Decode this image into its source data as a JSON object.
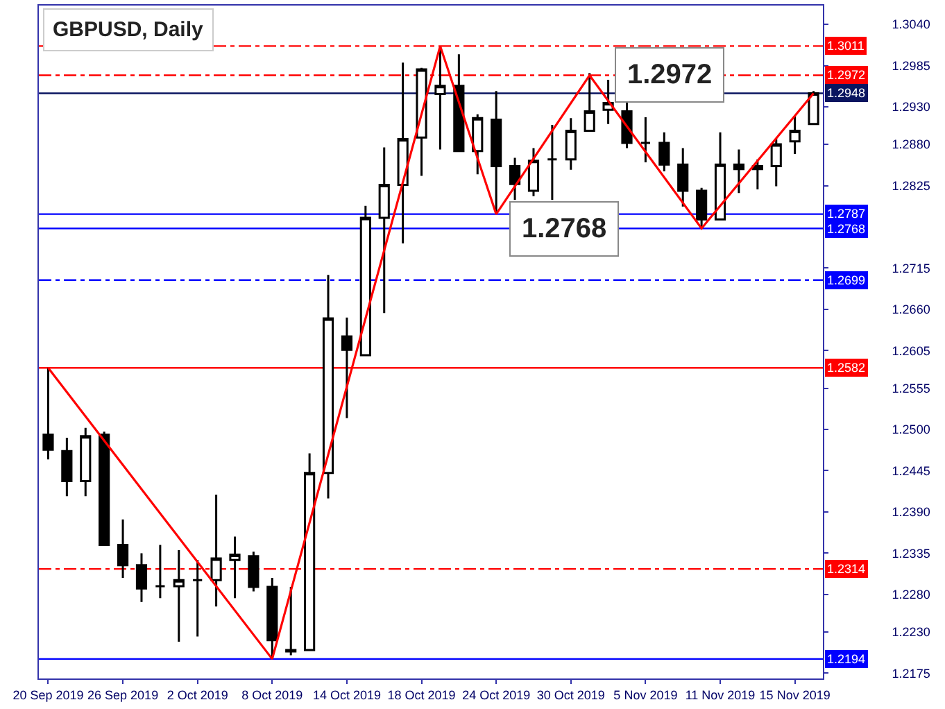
{
  "chart_data": {
    "type": "candlestick",
    "title": "GBPUSD, Daily",
    "categories": [
      "20 Sep 2019",
      null,
      null,
      null,
      "26 Sep 2019",
      null,
      null,
      null,
      "2 Oct 2019",
      null,
      null,
      null,
      "8 Oct 2019",
      null,
      null,
      null,
      "14 Oct 2019",
      null,
      null,
      null,
      "18 Oct 2019",
      null,
      null,
      null,
      "24 Oct 2019",
      null,
      null,
      null,
      "30 Oct 2019",
      null,
      null,
      null,
      "5 Nov 2019",
      null,
      null,
      null,
      "11 Nov 2019",
      null,
      null,
      null,
      "15 Nov 2019",
      null
    ],
    "ohlc": [
      [
        1.2493,
        1.2582,
        1.246,
        1.2473
      ],
      [
        1.2471,
        1.2489,
        1.2411,
        1.2431
      ],
      [
        1.2431,
        1.2502,
        1.2411,
        1.2491
      ],
      [
        1.2493,
        1.2497,
        1.2346,
        1.2346
      ],
      [
        1.2346,
        1.238,
        1.2302,
        1.2319
      ],
      [
        1.2319,
        1.2335,
        1.227,
        1.2288
      ],
      [
        1.2291,
        1.2346,
        1.2275,
        1.2291
      ],
      [
        1.2291,
        1.2339,
        1.2217,
        1.2299
      ],
      [
        1.2299,
        1.2326,
        1.2224,
        1.2299
      ],
      [
        1.2299,
        1.2413,
        1.2264,
        1.2328
      ],
      [
        1.2326,
        1.2357,
        1.2275,
        1.2333
      ],
      [
        1.2331,
        1.2337,
        1.2284,
        1.229
      ],
      [
        1.229,
        1.2302,
        1.2194,
        1.2219
      ],
      [
        1.2204,
        1.229,
        1.2199,
        1.2206
      ],
      [
        1.2206,
        1.2468,
        1.2206,
        1.2442
      ],
      [
        1.2442,
        1.2706,
        1.2408,
        1.2648
      ],
      [
        1.2624,
        1.2649,
        1.2515,
        1.2606
      ],
      [
        1.2599,
        1.2798,
        1.2599,
        1.2782
      ],
      [
        1.2782,
        1.2876,
        1.2655,
        1.2826
      ],
      [
        1.2826,
        1.2989,
        1.2748,
        1.2887
      ],
      [
        1.2889,
        1.2982,
        1.2838,
        1.298
      ],
      [
        1.2947,
        1.3011,
        1.2873,
        1.2958
      ],
      [
        1.2958,
        1.3,
        1.2871,
        1.2871
      ],
      [
        1.2871,
        1.292,
        1.284,
        1.2915
      ],
      [
        1.2913,
        1.2951,
        1.2787,
        1.2851
      ],
      [
        1.2851,
        1.2862,
        1.2806,
        1.2827
      ],
      [
        1.2818,
        1.2875,
        1.2811,
        1.2858
      ],
      [
        1.286,
        1.2906,
        1.2806,
        1.286
      ],
      [
        1.286,
        1.2915,
        1.2846,
        1.2898
      ],
      [
        1.2898,
        1.2975,
        1.2898,
        1.2924
      ],
      [
        1.2926,
        1.2966,
        1.2907,
        1.2935
      ],
      [
        1.2924,
        1.294,
        1.2875,
        1.2882
      ],
      [
        1.2882,
        1.2916,
        1.2856,
        1.2882
      ],
      [
        1.2882,
        1.2896,
        1.2844,
        1.2853
      ],
      [
        1.2853,
        1.2875,
        1.2797,
        1.2818
      ],
      [
        1.2818,
        1.2822,
        1.2768,
        1.278
      ],
      [
        1.278,
        1.2896,
        1.278,
        1.2853
      ],
      [
        1.2853,
        1.2873,
        1.2815,
        1.2847
      ],
      [
        1.2847,
        1.286,
        1.282,
        1.2851
      ],
      [
        1.2851,
        1.2887,
        1.2824,
        1.288
      ],
      [
        1.2884,
        1.2918,
        1.2867,
        1.2898
      ],
      [
        1.2907,
        1.2951,
        1.2906,
        1.2948
      ]
    ],
    "color": "#000000",
    "series": [
      {
        "type": "line",
        "color": "#ff0000",
        "values": [
          1.2582,
          null,
          null,
          null,
          null,
          null,
          null,
          null,
          null,
          null,
          null,
          null,
          1.2194,
          null,
          null,
          null,
          null,
          null,
          null,
          null,
          null,
          1.3011,
          null,
          null,
          1.2787,
          null,
          null,
          null,
          null,
          1.2972,
          null,
          null,
          null,
          null,
          null,
          1.2768,
          null,
          null,
          null,
          null,
          null,
          1.2948
        ]
      }
    ],
    "ylim": [
      1.2168,
      1.3065
    ],
    "yticks": [
      {
        "value": 1.304,
        "label": "1.3040"
      },
      1.2985,
      {
        "value": 1.293,
        "label": "1.2930"
      },
      {
        "value": 1.288,
        "label": "1.2880"
      },
      1.2825,
      1.2715,
      {
        "value": 1.266,
        "label": "1.2660"
      },
      1.2605,
      1.2555,
      {
        "value": 1.25,
        "label": "1.2500"
      },
      1.2445,
      {
        "value": 1.239,
        "label": "1.2390"
      },
      1.2335,
      {
        "value": 1.228,
        "label": "1.2280"
      },
      {
        "value": 1.223,
        "label": "1.2230"
      },
      1.2175
    ],
    "ref_lines": [
      {
        "axis": "y",
        "value": 1.3011,
        "label": "1.3011",
        "color": "#ff0000",
        "line_style": "dashdot"
      },
      {
        "axis": "y",
        "value": 1.2972,
        "label": "1.2972",
        "color": "#ff0000",
        "line_style": "dashdot"
      },
      {
        "axis": "y",
        "value": 1.2948,
        "label": "1.2948",
        "color": "#0a1560",
        "line_style": "solid"
      },
      {
        "axis": "y",
        "value": 1.2787,
        "label": "1.2787",
        "color": "#0000ff",
        "line_style": "solid"
      },
      {
        "axis": "y",
        "value": 1.2768,
        "label": "1.2768",
        "color": "#0000ff",
        "line_style": "solid"
      },
      {
        "axis": "y",
        "value": 1.2699,
        "label": "1.2699",
        "color": "#0000ff",
        "line_style": "dashdot"
      },
      {
        "axis": "y",
        "value": 1.2582,
        "label": "1.2582",
        "color": "#ff0000",
        "line_style": "solid"
      },
      {
        "axis": "y",
        "value": 1.2314,
        "label": "1.2314",
        "color": "#ff0000",
        "line_style": "dashdot"
      },
      {
        "axis": "y",
        "value": 1.2194,
        "label": "1.2194",
        "color": "#0000ff",
        "line_style": "solid"
      }
    ],
    "annotations": [
      {
        "text": "1.2972",
        "y": 1.2972
      },
      {
        "text": "1.2768",
        "y": 1.2768
      }
    ],
    "grid": false
  }
}
